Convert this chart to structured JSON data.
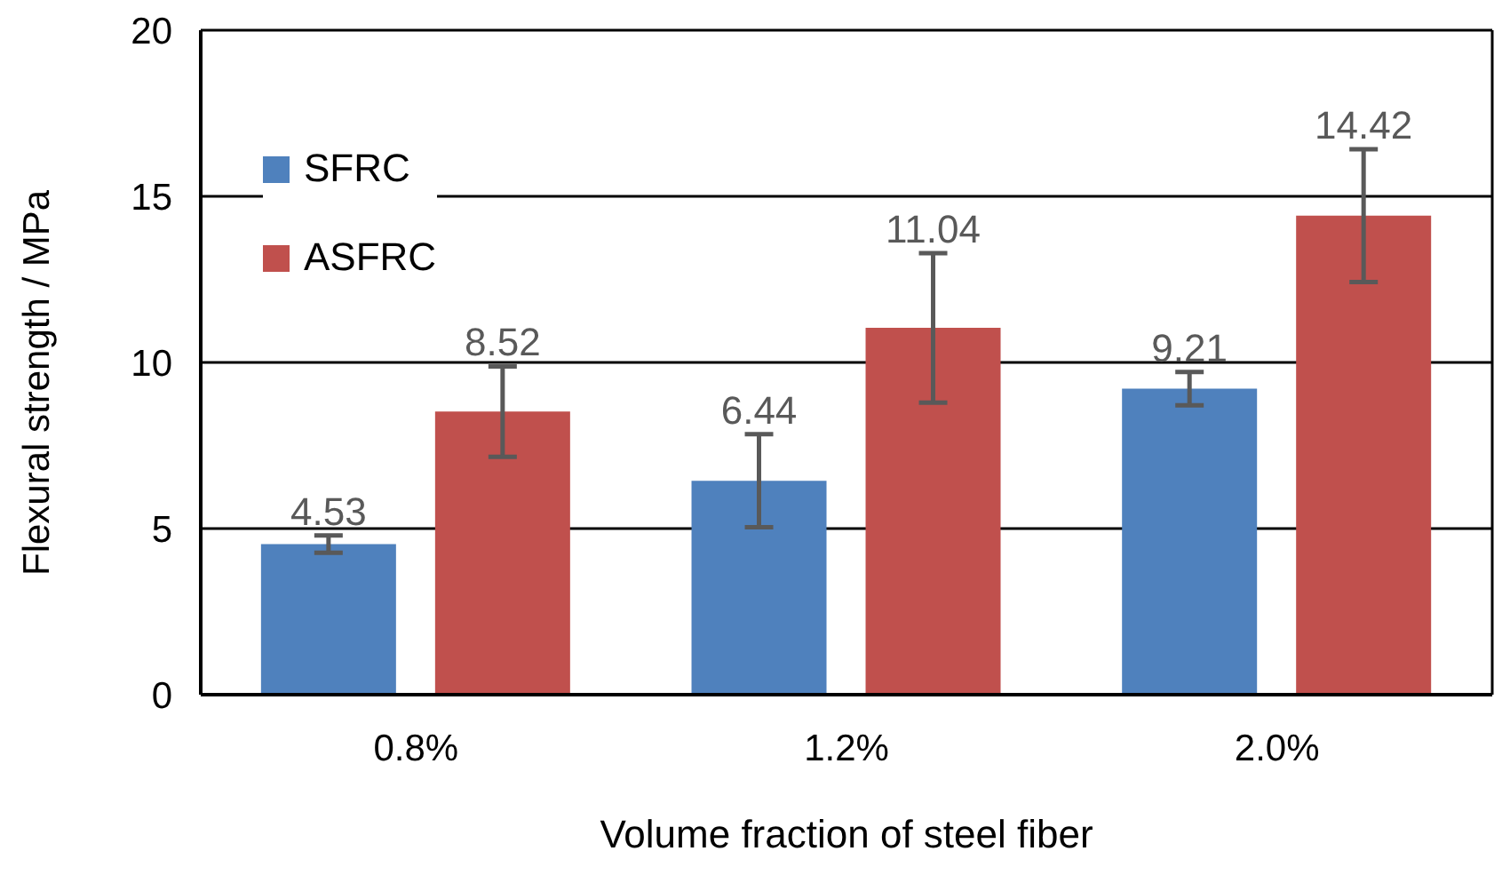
{
  "chart_data": {
    "type": "bar",
    "xlabel": "Volume fraction of steel fiber",
    "ylabel": "Flexural strength / MPa",
    "categories": [
      "0.8%",
      "1.2%",
      "2.0%"
    ],
    "series": [
      {
        "name": "SFRC",
        "color": "#4f81bd",
        "values": [
          4.53,
          6.44,
          9.21
        ],
        "errors": [
          0.26,
          1.4,
          0.5
        ]
      },
      {
        "name": "ASFRC",
        "color": "#c0504d",
        "values": [
          8.52,
          11.04,
          14.42
        ],
        "errors": [
          1.36,
          2.25,
          2.0
        ]
      }
    ],
    "ylim": [
      0,
      20
    ],
    "yticks": [
      0,
      5,
      10,
      15,
      20
    ],
    "grid": "y",
    "legend": "top left",
    "data_labels": true
  }
}
